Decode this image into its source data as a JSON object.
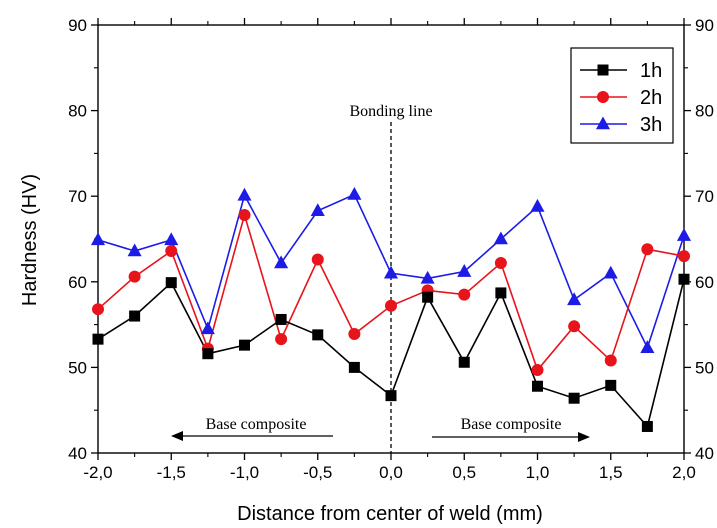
{
  "chart_data": {
    "type": "line",
    "xlabel": "Distance from center of weld (mm)",
    "ylabel": "Hardness (HV)",
    "xlim": [
      -2.0,
      2.0
    ],
    "ylim": [
      40,
      90
    ],
    "x_ticks": [
      "-2,0",
      "-1,5",
      "-1,0",
      "-0,5",
      "0,0",
      "0,5",
      "1,0",
      "1,5",
      "2,0"
    ],
    "y_ticks": [
      "40",
      "50",
      "60",
      "70",
      "80",
      "90"
    ],
    "right_y_ticks": [
      "40",
      "50",
      "60",
      "70",
      "80",
      "90"
    ],
    "x": [
      -2.0,
      -1.75,
      -1.5,
      -1.25,
      -1.0,
      -0.75,
      -0.5,
      -0.25,
      0.0,
      0.25,
      0.5,
      0.75,
      1.0,
      1.25,
      1.5,
      1.75,
      2.0
    ],
    "series": [
      {
        "name": "1h",
        "color": "#000000",
        "marker": "square",
        "values": [
          53.3,
          56.0,
          59.9,
          51.6,
          52.6,
          55.6,
          53.8,
          50.0,
          46.7,
          58.2,
          50.6,
          58.7,
          47.8,
          46.4,
          47.9,
          43.1,
          60.3
        ]
      },
      {
        "name": "2h",
        "color": "#e8141b",
        "marker": "circle",
        "values": [
          56.8,
          60.6,
          63.6,
          52.2,
          67.8,
          53.3,
          62.6,
          53.9,
          57.2,
          59.0,
          58.5,
          62.2,
          49.7,
          54.8,
          50.8,
          63.8,
          63.0
        ]
      },
      {
        "name": "3h",
        "color": "#1c1ce6",
        "marker": "triangle",
        "values": [
          64.9,
          63.6,
          64.9,
          54.5,
          70.1,
          62.2,
          68.3,
          70.2,
          61.0,
          60.4,
          61.2,
          65.0,
          68.8,
          57.9,
          61.0,
          52.3,
          65.4
        ]
      }
    ],
    "legend_position": "top-right",
    "grid": false,
    "annotations": {
      "bonding_line": {
        "text": "Bonding line",
        "x": 0.0
      },
      "left_arrow": {
        "text": "Base composite",
        "direction": "left"
      },
      "right_arrow": {
        "text": "Base composite",
        "direction": "right"
      }
    }
  }
}
